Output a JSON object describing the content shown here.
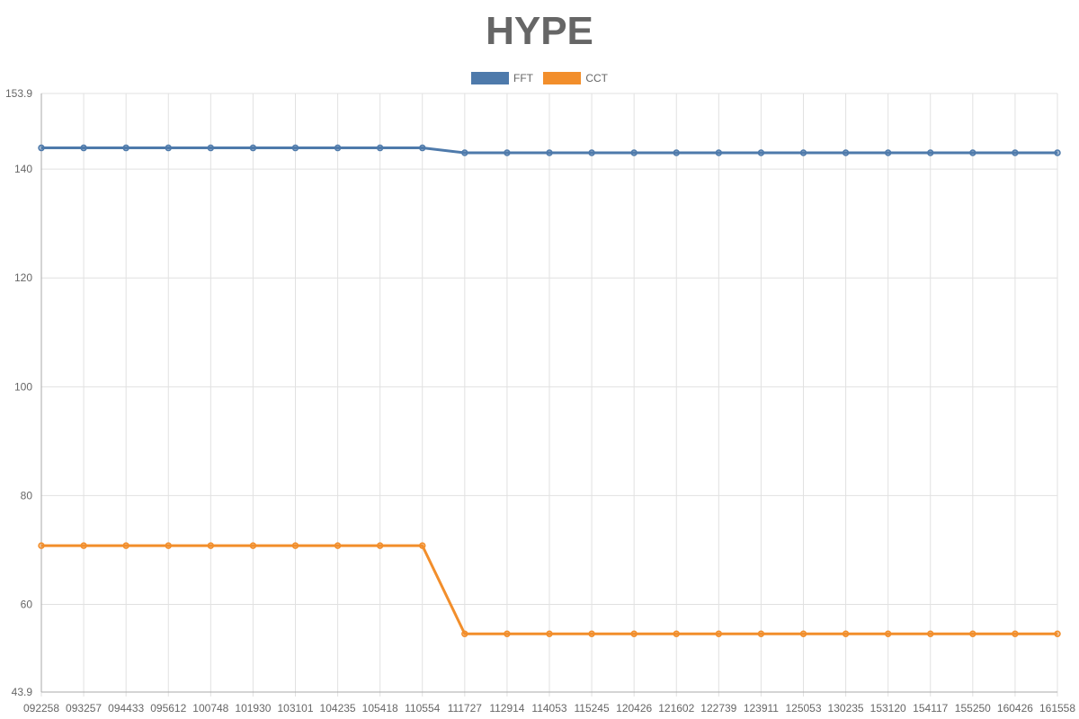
{
  "chart_data": {
    "type": "line",
    "title": "HYPE",
    "xlabel": "",
    "ylabel": "",
    "ylim": [
      43.9,
      153.9
    ],
    "y_ticks": [
      "153.9",
      "140",
      "120",
      "100",
      "80",
      "60",
      "43.9"
    ],
    "categories": [
      "092258",
      "093257",
      "094433",
      "095612",
      "100748",
      "101930",
      "103101",
      "104235",
      "105418",
      "110554",
      "111727",
      "112914",
      "114053",
      "115245",
      "120426",
      "121602",
      "122739",
      "123911",
      "125053",
      "130235",
      "153120",
      "154117",
      "155250",
      "160426",
      "161558"
    ],
    "series": [
      {
        "name": "FFT",
        "color": "#4e7aab",
        "values": [
          143.9,
          143.9,
          143.9,
          143.9,
          143.9,
          143.9,
          143.9,
          143.9,
          143.9,
          143.9,
          143.0,
          143.0,
          143.0,
          143.0,
          143.0,
          143.0,
          143.0,
          143.0,
          143.0,
          143.0,
          143.0,
          143.0,
          143.0,
          143.0,
          143.0
        ]
      },
      {
        "name": "CCT",
        "color": "#f28e2b",
        "values": [
          70.8,
          70.8,
          70.8,
          70.8,
          70.8,
          70.8,
          70.8,
          70.8,
          70.8,
          70.8,
          54.6,
          54.6,
          54.6,
          54.6,
          54.6,
          54.6,
          54.6,
          54.6,
          54.6,
          54.6,
          54.6,
          54.6,
          54.6,
          54.6,
          54.6
        ]
      }
    ],
    "legend_position": "top-center",
    "grid": true
  }
}
